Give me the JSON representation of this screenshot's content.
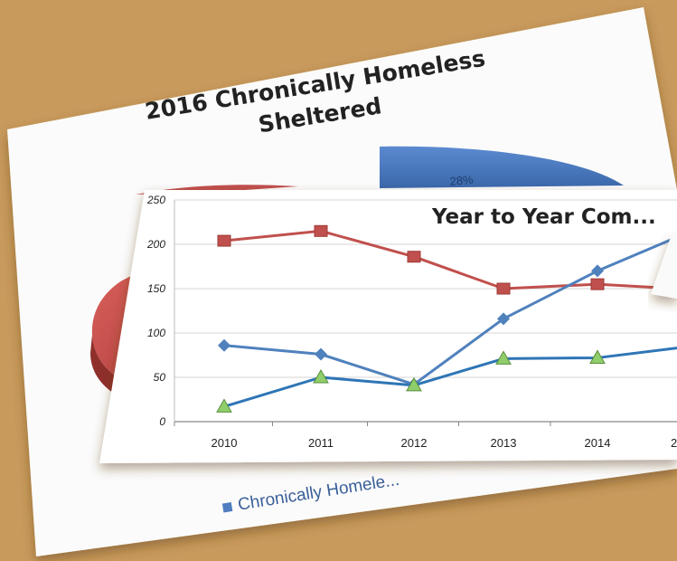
{
  "pie_chart": {
    "title_line1": "2016 Chronically Homeless",
    "title_line2": "Sheltered",
    "slices": [
      {
        "label": "28%",
        "value": 28,
        "color": "#4f7dbf"
      },
      {
        "label": "",
        "value": 72,
        "color": "#c0504d"
      }
    ],
    "legend_label": "Chronically Homele..."
  },
  "chart_data": {
    "type": "line",
    "title": "Year to Year Com...",
    "x": [
      "2010",
      "2011",
      "2012",
      "2013",
      "2014",
      "2"
    ],
    "ylim": [
      0,
      250
    ],
    "yticks": [
      "0",
      "50",
      "100",
      "150",
      "200",
      "250"
    ],
    "series": [
      {
        "marker": "square",
        "color": "#c0504d",
        "values": [
          204,
          215,
          186,
          150,
          155,
          150
        ]
      },
      {
        "marker": "diamond",
        "color": "#4f81bd",
        "values": [
          86,
          76,
          42,
          116,
          170,
          208
        ]
      },
      {
        "marker": "triangle",
        "color": "#2e75b6",
        "marker_color": "#8fce6a",
        "values": [
          17,
          50,
          41,
          71,
          72,
          83
        ]
      }
    ],
    "grid": true
  }
}
